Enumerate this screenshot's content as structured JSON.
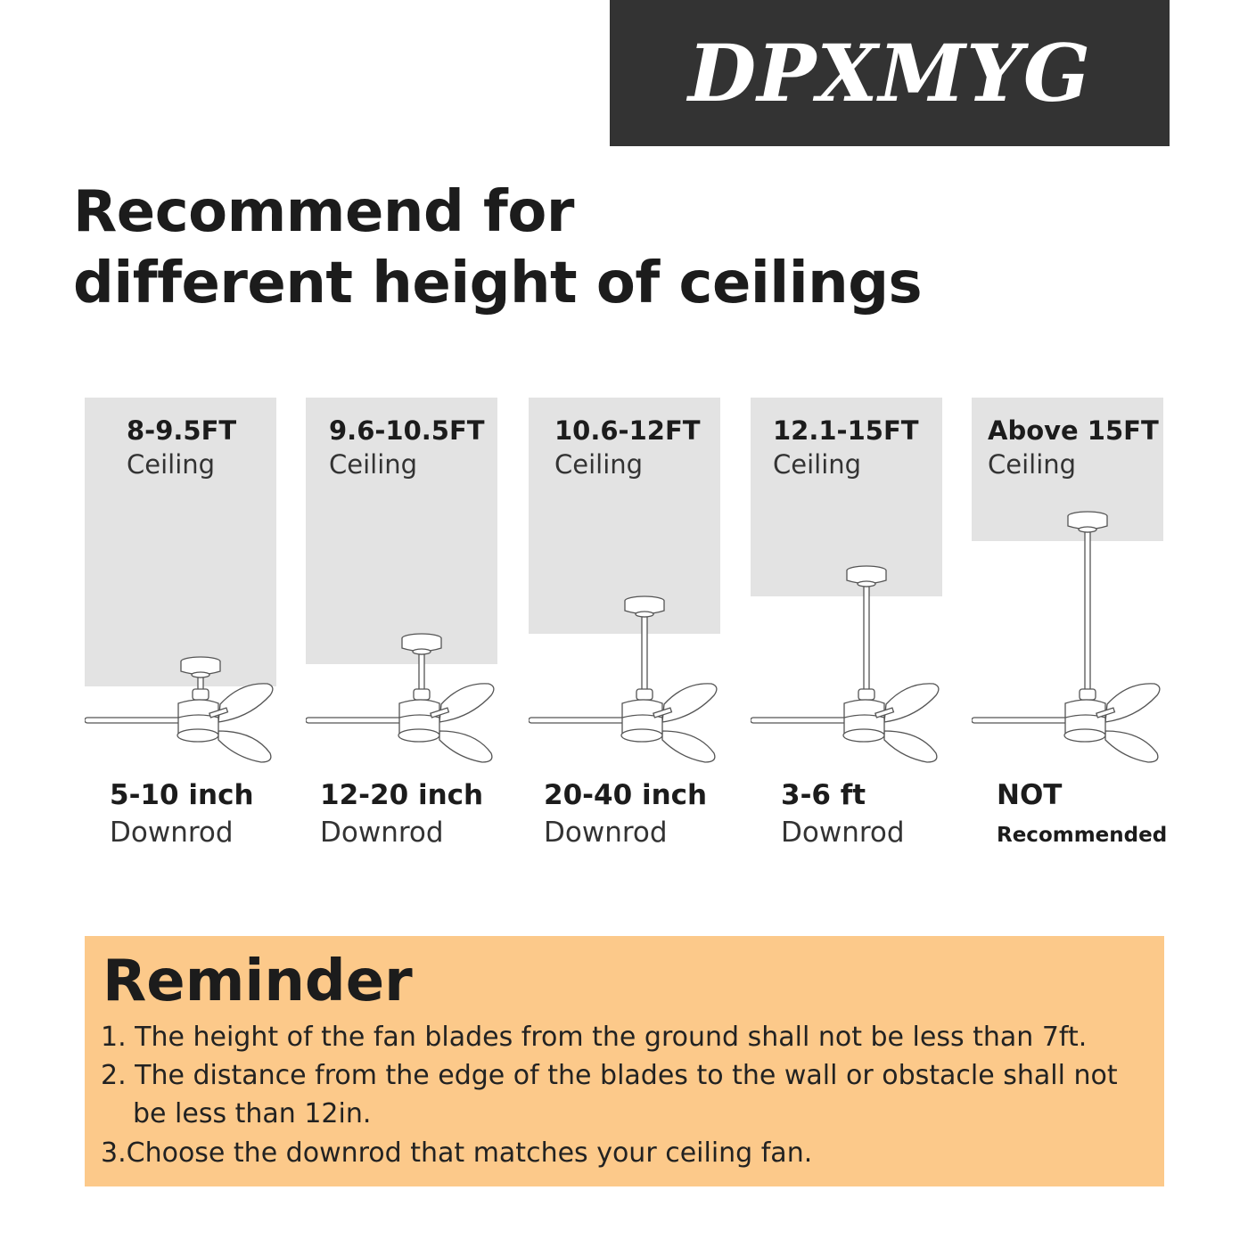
{
  "brand": {
    "name": "DPXMYG",
    "bg_color": "#333333"
  },
  "title": {
    "line1": "Recommend for",
    "line2": "different height of ceilings"
  },
  "columns": [
    {
      "range": "8-9.5FT",
      "ceiling": "Ceiling",
      "downrod_value": "5-10 inch",
      "downrod_label": "Downrod",
      "box_color": "#e3e3e3"
    },
    {
      "range": "9.6-10.5FT",
      "ceiling": "Ceiling",
      "downrod_value": "12-20 inch",
      "downrod_label": "Downrod"
    },
    {
      "range": "10.6-12FT",
      "ceiling": "Ceiling",
      "downrod_value": "20-40 inch",
      "downrod_label": "Downrod"
    },
    {
      "range": "12.1-15FT",
      "ceiling": "Ceiling",
      "downrod_value": "3-6 ft",
      "downrod_label": "Downrod"
    },
    {
      "range": "Above 15FT",
      "ceiling": "Ceiling",
      "downrod_value": "NOT",
      "downrod_label": "Recommended"
    }
  ],
  "icons": [
    "ceiling-fan-icon"
  ],
  "reminder": {
    "heading": "Reminder",
    "bg_color": "#fcc98a",
    "items": [
      "1. The height of the fan blades from the ground shall not be less than 7ft.",
      "2. The distance from the edge of the blades to the wall or obstacle shall not",
      "be less than 12in.",
      "3.Choose the downrod that matches your ceiling fan."
    ]
  }
}
